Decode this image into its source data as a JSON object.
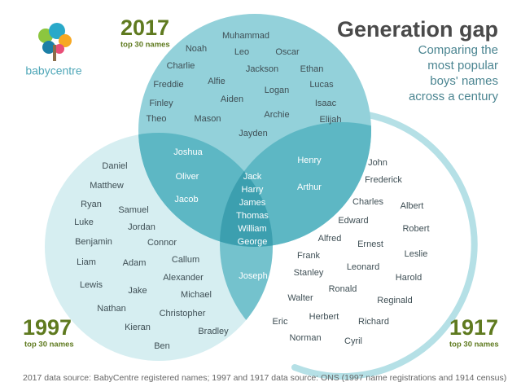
{
  "logo": "babycentre",
  "title": "Generation gap",
  "subtitle": [
    "Comparing the",
    "most popular",
    "boys' names",
    "across a century"
  ],
  "sets": [
    {
      "year": "2017",
      "caption": "top 30 names"
    },
    {
      "year": "1997",
      "caption": "top 30 names"
    },
    {
      "year": "1917",
      "caption": "top 30 names"
    }
  ],
  "regions": [
    {
      "names": [
        "Muhammad",
        "Noah",
        "Leo",
        "Oscar",
        "Charlie",
        "Jackson",
        "Ethan",
        "Freddie",
        "Alfie",
        "Logan",
        "Lucas",
        "Finley",
        "Aiden",
        "Isaac",
        "Theo",
        "Mason",
        "Archie",
        "Elijah",
        "Jayden"
      ]
    },
    {
      "names": [
        "Joshua",
        "Oliver",
        "Jacob"
      ]
    },
    {
      "names": [
        "Henry",
        "Arthur"
      ]
    },
    {
      "names": [
        "Jack",
        "Harry",
        "James",
        "Thomas",
        "William",
        "George"
      ]
    },
    {
      "names": [
        "Joseph"
      ]
    },
    {
      "names": [
        "Daniel",
        "Matthew",
        "Ryan",
        "Samuel",
        "Luke",
        "Jordan",
        "Benjamin",
        "Connor",
        "Liam",
        "Adam",
        "Callum",
        "Lewis",
        "Alexander",
        "Jake",
        "Michael",
        "Nathan",
        "Christopher",
        "Kieran",
        "Bradley",
        "Ben"
      ]
    },
    {
      "names": [
        "John",
        "Frederick",
        "Charles",
        "Albert",
        "Edward",
        "Robert",
        "Alfred",
        "Ernest",
        "Frank",
        "Leslie",
        "Leonard",
        "Stanley",
        "Harold",
        "Ronald",
        "Walter",
        "Reginald",
        "Eric",
        "Herbert",
        "Richard",
        "Norman",
        "Cyril"
      ]
    }
  ],
  "source": "2017 data source: BabyCentre registered names; 1997 and 1917 data source: ONS (1997 name registrations and 1914 census)"
}
